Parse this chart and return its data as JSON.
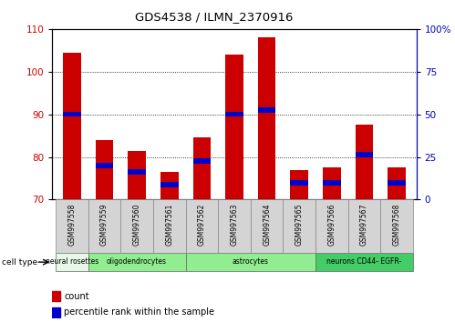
{
  "title": "GDS4538 / ILMN_2370916",
  "samples": [
    "GSM997558",
    "GSM997559",
    "GSM997560",
    "GSM997561",
    "GSM997562",
    "GSM997563",
    "GSM997564",
    "GSM997565",
    "GSM997566",
    "GSM997567",
    "GSM997568"
  ],
  "red_values": [
    104.5,
    84.0,
    81.5,
    76.5,
    84.5,
    104.0,
    108.0,
    77.0,
    77.5,
    87.5,
    77.5
  ],
  "blue_values": [
    90.0,
    78.0,
    76.5,
    73.5,
    79.0,
    90.0,
    91.0,
    74.0,
    74.0,
    80.5,
    74.0
  ],
  "ylim_left": [
    70,
    110
  ],
  "ylim_right": [
    0,
    100
  ],
  "yticks_left": [
    70,
    80,
    90,
    100,
    110
  ],
  "yticks_right": [
    0,
    25,
    50,
    75,
    100
  ],
  "yticklabels_right": [
    "0",
    "25",
    "50",
    "75",
    "100%"
  ],
  "bar_color_red": "#cc0000",
  "bar_color_blue": "#0000cc",
  "bar_width": 0.55,
  "left_tick_color": "#cc0000",
  "right_tick_color": "#0000bb",
  "group_info": [
    {
      "start": 0,
      "end": 1,
      "label": "neural rosettes",
      "color": "#e8f8e8"
    },
    {
      "start": 1,
      "end": 4,
      "label": "oligodendrocytes",
      "color": "#90ee90"
    },
    {
      "start": 4,
      "end": 8,
      "label": "astrocytes",
      "color": "#90ee90"
    },
    {
      "start": 8,
      "end": 11,
      "label": "neurons CD44- EGFR-",
      "color": "#44cc66"
    }
  ]
}
